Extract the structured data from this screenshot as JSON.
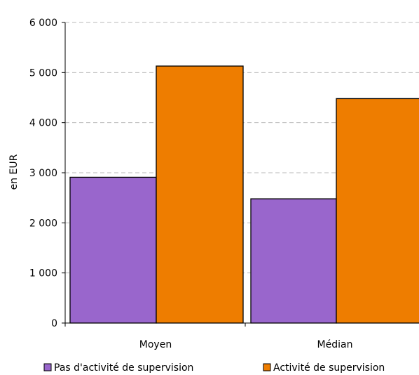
{
  "chart_data": {
    "type": "bar",
    "title": "",
    "xlabel": "",
    "ylabel": "en EUR",
    "ylim": [
      0,
      6000
    ],
    "yticks": [
      0,
      1000,
      2000,
      3000,
      4000,
      5000,
      6000
    ],
    "ytick_labels": [
      "0",
      "1 000",
      "2 000",
      "3 000",
      "4 000",
      "5 000",
      "6 000"
    ],
    "categories": [
      "Moyen",
      "Médian"
    ],
    "grid": true,
    "legend_position": "bottom",
    "series": [
      {
        "name": "Pas d'activité de supervision",
        "color": "#9966cc",
        "values": [
          2910,
          2480
        ]
      },
      {
        "name": "Activité de supervision",
        "color": "#ee7d00",
        "values": [
          5130,
          4480
        ]
      }
    ]
  }
}
